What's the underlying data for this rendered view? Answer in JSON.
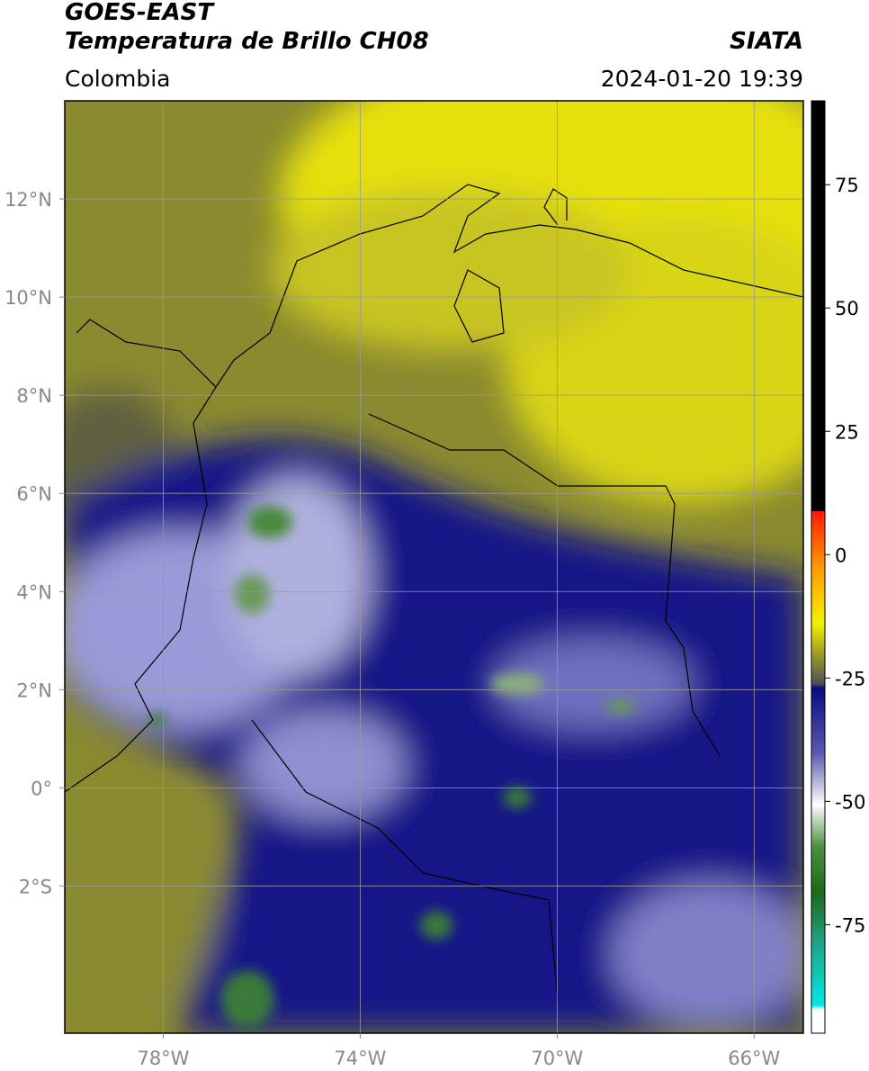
{
  "map": {
    "title": "GOES-EAST",
    "subtitle": "Temperatura de Brillo CH08",
    "region": "Colombia",
    "source": "SIATA",
    "datetime": "2024-01-20 19:39",
    "xlim": [
      -80,
      -65
    ],
    "ylim": [
      -5,
      14
    ],
    "xticks": [
      {
        "value": -78,
        "label": "78°W"
      },
      {
        "value": -74,
        "label": "74°W"
      },
      {
        "value": -70,
        "label": "70°W"
      },
      {
        "value": -66,
        "label": "66°W"
      }
    ],
    "yticks": [
      {
        "value": 12,
        "label": "12°N"
      },
      {
        "value": 10,
        "label": "10°N"
      },
      {
        "value": 8,
        "label": "8°N"
      },
      {
        "value": 6,
        "label": "6°N"
      },
      {
        "value": 4,
        "label": "4°N"
      },
      {
        "value": 2,
        "label": "2°N"
      },
      {
        "value": 0,
        "label": "0°"
      },
      {
        "value": -2,
        "label": "2°S"
      }
    ],
    "grid": true,
    "colorbar": {
      "range": [
        -97,
        92
      ],
      "ticks": [
        75,
        50,
        25,
        0,
        -25,
        -50,
        -75
      ]
    }
  }
}
